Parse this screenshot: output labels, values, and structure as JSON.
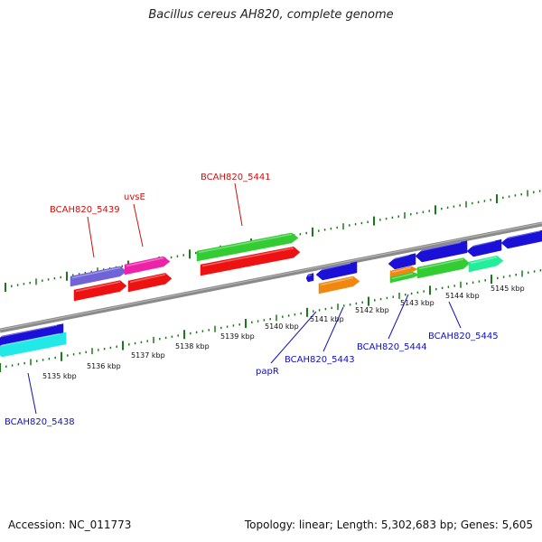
{
  "title": "Bacillus cereus AH820, complete genome",
  "accession_text": "Accession: NC_011773",
  "summary_text": "Topology: linear; Length: 5,302,683 bp; Genes: 5,605",
  "colors": {
    "backbone": "#8a8a8a",
    "tick": "#1a7a1a",
    "label_top": "#cc1111",
    "label_bottom": "#1111bb",
    "tick_label": "#111111"
  },
  "kbp_labels": [
    "5135 kbp",
    "5136 kbp",
    "5137 kbp",
    "5138 kbp",
    "5139 kbp",
    "5140 kbp",
    "5141 kbp",
    "5142 kbp",
    "5143 kbp",
    "5144 kbp",
    "5145 kbp"
  ],
  "gene_labels_top": [
    "BCAH820_5439",
    "uvsE",
    "BCAH820_5441"
  ],
  "gene_labels_bottom": [
    "BCAH820_5438",
    "papR",
    "BCAH820_5443",
    "BCAH820_5444",
    "BCAH820_5445"
  ],
  "features": [
    {
      "color": "#1a10d8",
      "strand": "reverse"
    },
    {
      "color": "#22e8e8",
      "strand": "reverse"
    },
    {
      "color": "#7063d8",
      "strand": "forward"
    },
    {
      "color": "#ee22a8",
      "strand": "forward"
    },
    {
      "color": "#ee1111",
      "strand": "forward"
    },
    {
      "color": "#ee1111",
      "strand": "forward"
    },
    {
      "color": "#33cc33",
      "strand": "forward"
    },
    {
      "color": "#ee1111",
      "strand": "forward"
    },
    {
      "color": "#1a10d8",
      "strand": "reverse"
    },
    {
      "color": "#1a10d8",
      "strand": "reverse"
    },
    {
      "color": "#f08810",
      "strand": "forward"
    },
    {
      "color": "#1a10d8",
      "strand": "reverse"
    },
    {
      "color": "#1a10d8",
      "strand": "reverse"
    },
    {
      "color": "#1a10d8",
      "strand": "reverse"
    },
    {
      "color": "#1a10d8",
      "strand": "reverse"
    },
    {
      "color": "#f08810",
      "strand": "forward"
    },
    {
      "color": "#33cc33",
      "strand": "forward"
    },
    {
      "color": "#33cc33",
      "strand": "forward"
    },
    {
      "color": "#22ee99",
      "strand": "forward"
    }
  ]
}
